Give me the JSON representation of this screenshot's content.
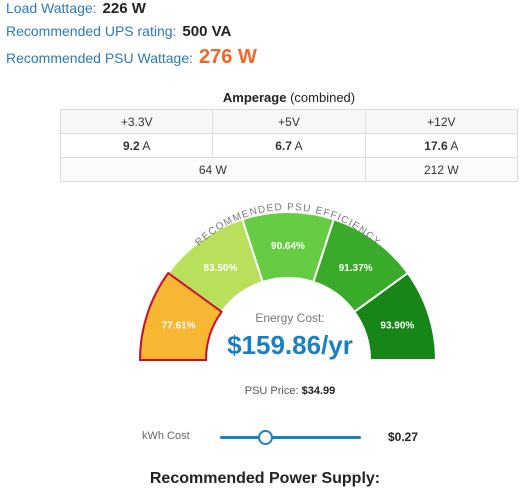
{
  "stats": {
    "load_label": "Load Wattage:",
    "load_value": "226 W",
    "ups_label": "Recommended UPS rating:",
    "ups_value": "500 VA",
    "psu_label": "Recommended PSU Wattage:",
    "psu_value": "276 W"
  },
  "amperage": {
    "title_bold": "Amperage",
    "title_rest": "(combined)",
    "rails": [
      "+3.3V",
      "+5V",
      "+12V"
    ],
    "amps": [
      "9.2",
      "6.7",
      "17.6"
    ],
    "amp_unit": "A",
    "watts": [
      "64 W",
      "212 W"
    ]
  },
  "gauge": {
    "arc_label": "RECOMMENDED PSU EFFICIENCY",
    "segments": [
      {
        "label": "77.61%",
        "color": "#f7b733",
        "stroke": "#c8102e",
        "selected": true
      },
      {
        "label": "83.50%",
        "color": "#b8e05a",
        "stroke": "#ffffff",
        "selected": false
      },
      {
        "label": "90.64%",
        "color": "#66cc44",
        "stroke": "#ffffff",
        "selected": false
      },
      {
        "label": "91.37%",
        "color": "#3aaa2a",
        "stroke": "#ffffff",
        "selected": false
      },
      {
        "label": "93.90%",
        "color": "#178517",
        "stroke": "#ffffff",
        "selected": false
      }
    ]
  },
  "energy": {
    "label": "Energy Cost:",
    "value": "$159.86/yr"
  },
  "psu_price": {
    "label": "PSU Price:",
    "value": "$34.99"
  },
  "kwh": {
    "label": "kWh Cost",
    "value": "$0.27",
    "slider_fraction": 0.32
  },
  "recommended_title": "Recommended Power Supply:"
}
